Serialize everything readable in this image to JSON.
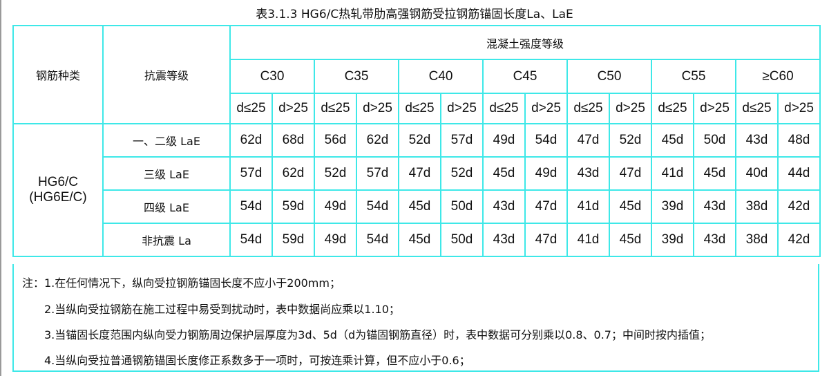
{
  "title": "表3.1.3  HG6/C热轧带肋高强钢筋受拉钢筋锚固长度La、LaE",
  "header": {
    "steel_type": "钢筋种类",
    "seismic_grade": "抗震等级",
    "concrete_grade": "混凝土强度等级",
    "grades": [
      "C30",
      "C35",
      "C40",
      "C45",
      "C50",
      "C55",
      "≥C60"
    ],
    "diameters": [
      "d≤25",
      "d>25"
    ]
  },
  "steel": "HG6/C\n(HG6E/C)",
  "steel_line1": "HG6/C",
  "steel_line2": "(HG6E/C)",
  "rows": [
    {
      "label": "一、二级 LaE",
      "values": [
        "62d",
        "68d",
        "56d",
        "62d",
        "52d",
        "57d",
        "49d",
        "54d",
        "47d",
        "52d",
        "45d",
        "50d",
        "43d",
        "48d"
      ]
    },
    {
      "label": "三级 LaE",
      "values": [
        "57d",
        "62d",
        "52d",
        "57d",
        "47d",
        "52d",
        "45d",
        "49d",
        "43d",
        "47d",
        "41d",
        "45d",
        "40d",
        "44d"
      ]
    },
    {
      "label": "四级 LaE",
      "values": [
        "54d",
        "59d",
        "49d",
        "54d",
        "45d",
        "50d",
        "43d",
        "47d",
        "41d",
        "45d",
        "39d",
        "43d",
        "38d",
        "42d"
      ]
    },
    {
      "label": "非抗震 La",
      "values": [
        "54d",
        "59d",
        "49d",
        "54d",
        "45d",
        "50d",
        "43d",
        "47d",
        "41d",
        "45d",
        "39d",
        "43d",
        "38d",
        "42d"
      ]
    }
  ],
  "notes": [
    "注：1.在任何情况下，纵向受拉钢筋锚固长度不应小于200mm；",
    "2.当纵向受拉钢筋在施工过程中易受到扰动时，表中数据尚应乘以1.10；",
    "3.当锚固长度范围内纵向受力钢筋周边保护层厚度为3d、5d（d为锚固钢筋直径）时，表中数据可分别乘以0.8、0.7；中间时按内插值；",
    "4.当纵向受拉普通钢筋锚固长度修正系数多于一项时，可按连乘计算，但不应小于0.6；"
  ],
  "colors": {
    "grid": "#3ee8e8",
    "text": "#111111"
  }
}
